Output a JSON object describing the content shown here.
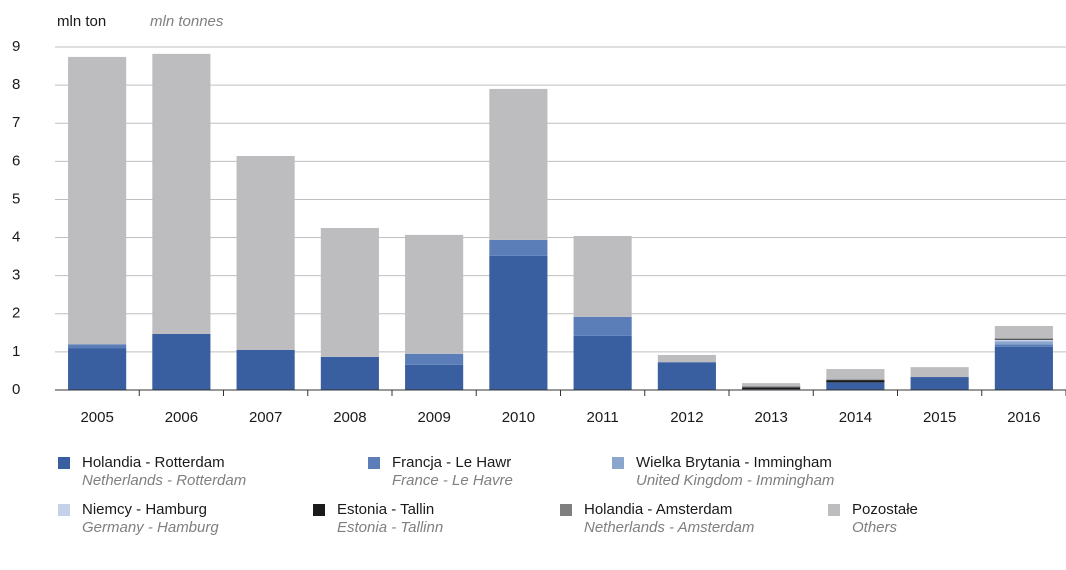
{
  "chart_data": {
    "type": "stacked_bar",
    "y_label": "mln ton",
    "y_label_en": "mln tonnes",
    "categories": [
      "2005",
      "2006",
      "2007",
      "2008",
      "2009",
      "2010",
      "2011",
      "2012",
      "2013",
      "2014",
      "2015",
      "2016"
    ],
    "series": [
      {
        "name": "Holandia - Rotterdam",
        "name_en": "Netherlands - Rotterdam",
        "color": "#3a5fa0",
        "values": [
          1.1,
          1.47,
          1.05,
          0.87,
          0.66,
          3.52,
          1.42,
          0.73,
          0.02,
          0.2,
          0.34,
          1.13
        ]
      },
      {
        "name": "Francja - Le Hawr",
        "name_en": "France - Le Havre",
        "color": "#5b7db8",
        "values": [
          0.1,
          0,
          0,
          0,
          0.29,
          0.42,
          0.5,
          0,
          0,
          0,
          0,
          0.07
        ]
      },
      {
        "name": "Wielka Brytania - Immingham",
        "name_en": "United Kingdom - Immingham",
        "color": "#8ba6cd",
        "values": [
          0,
          0,
          0,
          0,
          0,
          0,
          0,
          0,
          0,
          0,
          0,
          0.08
        ]
      },
      {
        "name": "Niemcy - Hamburg",
        "name_en": "Germany - Hamburg",
        "color": "#c3d2e8",
        "values": [
          0,
          0,
          0,
          0,
          0,
          0,
          0,
          0,
          0,
          0,
          0,
          0.04
        ]
      },
      {
        "name": "Estonia - Tallin",
        "name_en": "Estonia - Tallinn",
        "color": "#1a1a1a",
        "values": [
          0,
          0,
          0,
          0,
          0,
          0,
          0,
          0,
          0.05,
          0.06,
          0,
          0.02
        ]
      },
      {
        "name": "Holandia - Amsterdam",
        "name_en": "Netherlands - Amsterdam",
        "color": "#7f7f7f",
        "values": [
          0,
          0,
          0,
          0,
          0,
          0,
          0,
          0,
          0.03,
          0.02,
          0,
          0.02
        ]
      },
      {
        "name": "Pozostałe",
        "name_en": "Others",
        "color": "#bdbdc0",
        "values": [
          7.54,
          7.35,
          5.09,
          3.38,
          3.12,
          3.96,
          2.12,
          0.19,
          0.08,
          0.27,
          0.26,
          0.32
        ]
      }
    ],
    "ylim": [
      0,
      9
    ],
    "yticks": [
      0,
      1,
      2,
      3,
      4,
      5,
      6,
      7,
      8,
      9
    ],
    "grid": true
  }
}
